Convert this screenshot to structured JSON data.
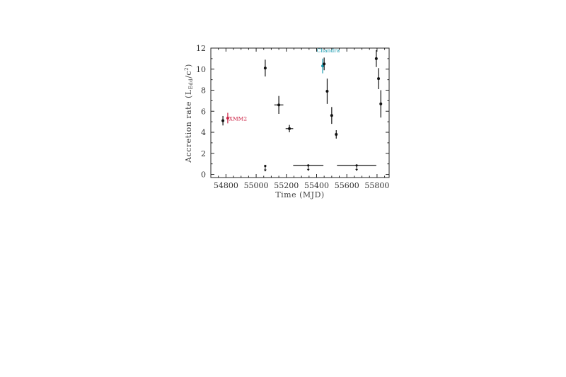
{
  "chart_data": {
    "type": "scatter",
    "title": "",
    "xlabel": "Time (MJD)",
    "ylabel": {
      "prefix": "Accretion rate (L",
      "subscript": "Edd",
      "mid": "/c",
      "superscript": "2",
      "suffix": ")"
    },
    "xlim": [
      54700,
      55880
    ],
    "ylim": [
      -0.3,
      12
    ],
    "xticks": [
      54800,
      55000,
      55200,
      55400,
      55600,
      55800
    ],
    "yticks": [
      0,
      2,
      4,
      6,
      8,
      10,
      12
    ],
    "colors": {
      "default": "#111111",
      "xmm": "#cc2244",
      "chandra": "#1a9bb0"
    },
    "points": [
      {
        "x": 54780,
        "y": 5.1,
        "xerr": 6,
        "yerr": 0.45,
        "series": "default"
      },
      {
        "x": 54812,
        "y": 5.35,
        "xerr": 3,
        "yerr": 0.5,
        "series": "xmm"
      },
      {
        "x": 55060,
        "y": 10.1,
        "xerr": 8,
        "yerr": 0.8,
        "series": "default"
      },
      {
        "x": 55150,
        "y": 6.6,
        "xerr": 30,
        "yerr": 0.85,
        "series": "default"
      },
      {
        "x": 55220,
        "y": 4.35,
        "xerr": 25,
        "yerr": 0.35,
        "series": "default"
      },
      {
        "x": 55440,
        "y": 10.3,
        "xerr": 4,
        "yerr": 0.7,
        "series": "chandra"
      },
      {
        "x": 55450,
        "y": 10.5,
        "xerr": 6,
        "yerr": 0.6,
        "series": "default"
      },
      {
        "x": 55470,
        "y": 7.9,
        "xerr": 6,
        "yerr": 1.2,
        "series": "default"
      },
      {
        "x": 55500,
        "y": 5.6,
        "xerr": 8,
        "yerr": 0.8,
        "series": "default"
      },
      {
        "x": 55530,
        "y": 3.8,
        "xerr": 8,
        "yerr": 0.4,
        "series": "default"
      },
      {
        "x": 55795,
        "y": 11.0,
        "xerr": 8,
        "yerr": 0.8,
        "series": "default"
      },
      {
        "x": 55810,
        "y": 9.1,
        "xerr": 5,
        "yerr": 1.0,
        "series": "default"
      },
      {
        "x": 55825,
        "y": 6.7,
        "xerr": 6,
        "yerr": 1.3,
        "series": "default"
      }
    ],
    "upper_limits": [
      {
        "x": 55060,
        "y": 0.8,
        "xerr": 4
      },
      {
        "x": 55345,
        "y": 0.85,
        "xerr": 100
      },
      {
        "x": 55665,
        "y": 0.85,
        "xerr": 130
      }
    ],
    "annotations": [
      {
        "text": "XMM2",
        "x": 54820,
        "y": 5.1,
        "color": "#cc2244"
      },
      {
        "text": "Chandra",
        "x": 55400,
        "y": 11.6,
        "color": "#1a9bb0"
      }
    ]
  }
}
